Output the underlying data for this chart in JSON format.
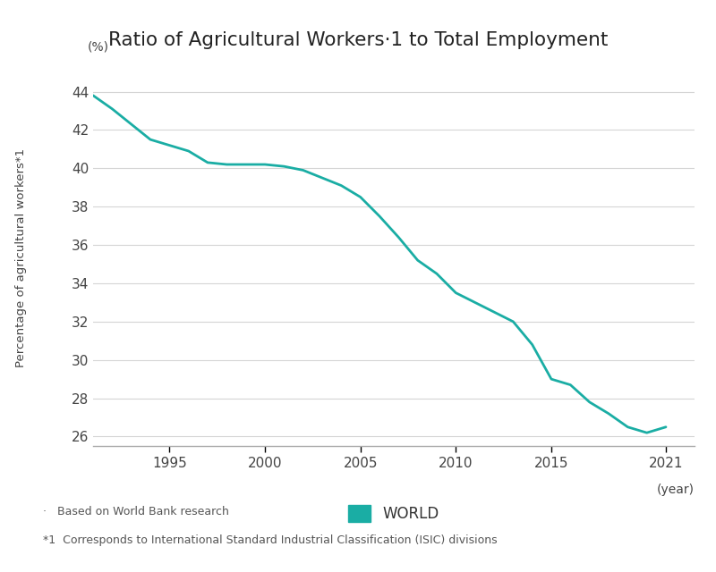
{
  "title": "Ratio of Agricultural Workers·1 to Total Employment",
  "title_parts": [
    "Ratio of Agricultural Workers",
    "*1",
    " to Total Employment"
  ],
  "ylabel": "Percentage of agricultural workers",
  "ylabel_super": "*1",
  "ylabel_unit": "(%)",
  "xlabel_year_label": "(year)",
  "line_color": "#1AADA4",
  "line_width": 2.0,
  "ylim": [
    25.5,
    45.2
  ],
  "yticks": [
    26,
    28,
    30,
    32,
    34,
    36,
    38,
    40,
    42,
    44
  ],
  "xlim": [
    1991,
    2022.5
  ],
  "xticks": [
    1995,
    2000,
    2005,
    2010,
    2015,
    2021
  ],
  "legend_label": "WORLD",
  "footnote1": "·   Based on World Bank research",
  "footnote2": "*1  Corresponds to International Standard Industrial Classification (ISIC) divisions",
  "years": [
    1991,
    1992,
    1993,
    1994,
    1995,
    1996,
    1997,
    1998,
    1999,
    2000,
    2001,
    2002,
    2003,
    2004,
    2005,
    2006,
    2007,
    2008,
    2009,
    2010,
    2011,
    2012,
    2013,
    2014,
    2015,
    2016,
    2017,
    2018,
    2019,
    2020,
    2021
  ],
  "values": [
    43.8,
    43.1,
    42.3,
    41.5,
    41.2,
    40.9,
    40.3,
    40.2,
    40.2,
    40.2,
    40.1,
    39.9,
    39.5,
    39.1,
    38.5,
    37.5,
    36.4,
    35.2,
    34.5,
    33.5,
    33.0,
    32.5,
    32.0,
    30.8,
    29.0,
    28.7,
    27.8,
    27.2,
    26.5,
    26.2,
    26.5
  ]
}
